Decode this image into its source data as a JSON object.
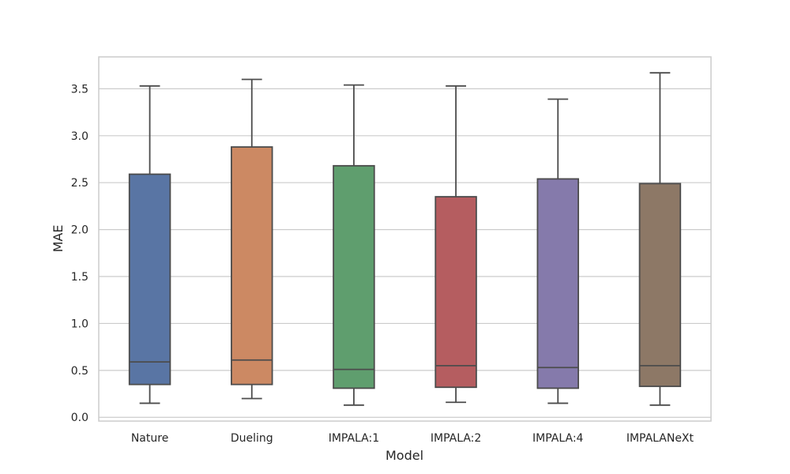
{
  "chart_data": {
    "type": "boxplot",
    "title": "",
    "xlabel": "Model",
    "ylabel": "MAE",
    "ylim": [
      -0.04,
      3.84
    ],
    "yticks": [
      "0.0",
      "0.5",
      "1.0",
      "1.5",
      "2.0",
      "2.5",
      "3.0",
      "3.5"
    ],
    "grid": true,
    "legend": "none",
    "categories": [
      "Nature",
      "Dueling",
      "IMPALA:1",
      "IMPALA:2",
      "IMPALA:4",
      "IMPALANeXt"
    ],
    "boxes": [
      {
        "category": "Nature",
        "whisker_low": 0.15,
        "q1": 0.35,
        "median": 0.59,
        "q3": 2.59,
        "whisker_high": 3.53,
        "color": "#5975a4"
      },
      {
        "category": "Dueling",
        "whisker_low": 0.2,
        "q1": 0.35,
        "median": 0.61,
        "q3": 2.88,
        "whisker_high": 3.6,
        "color": "#cc8963"
      },
      {
        "category": "IMPALA:1",
        "whisker_low": 0.13,
        "q1": 0.31,
        "median": 0.51,
        "q3": 2.68,
        "whisker_high": 3.54,
        "color": "#5f9e6e"
      },
      {
        "category": "IMPALA:2",
        "whisker_low": 0.16,
        "q1": 0.32,
        "median": 0.55,
        "q3": 2.35,
        "whisker_high": 3.53,
        "color": "#b55d60"
      },
      {
        "category": "IMPALA:4",
        "whisker_low": 0.15,
        "q1": 0.31,
        "median": 0.53,
        "q3": 2.54,
        "whisker_high": 3.39,
        "color": "#857aab"
      },
      {
        "category": "IMPALANeXt",
        "whisker_low": 0.13,
        "q1": 0.33,
        "median": 0.55,
        "q3": 2.49,
        "whisker_high": 3.67,
        "color": "#8d7866"
      }
    ],
    "line_color": "#4c4c4c",
    "grid_color": "#cccccc"
  }
}
